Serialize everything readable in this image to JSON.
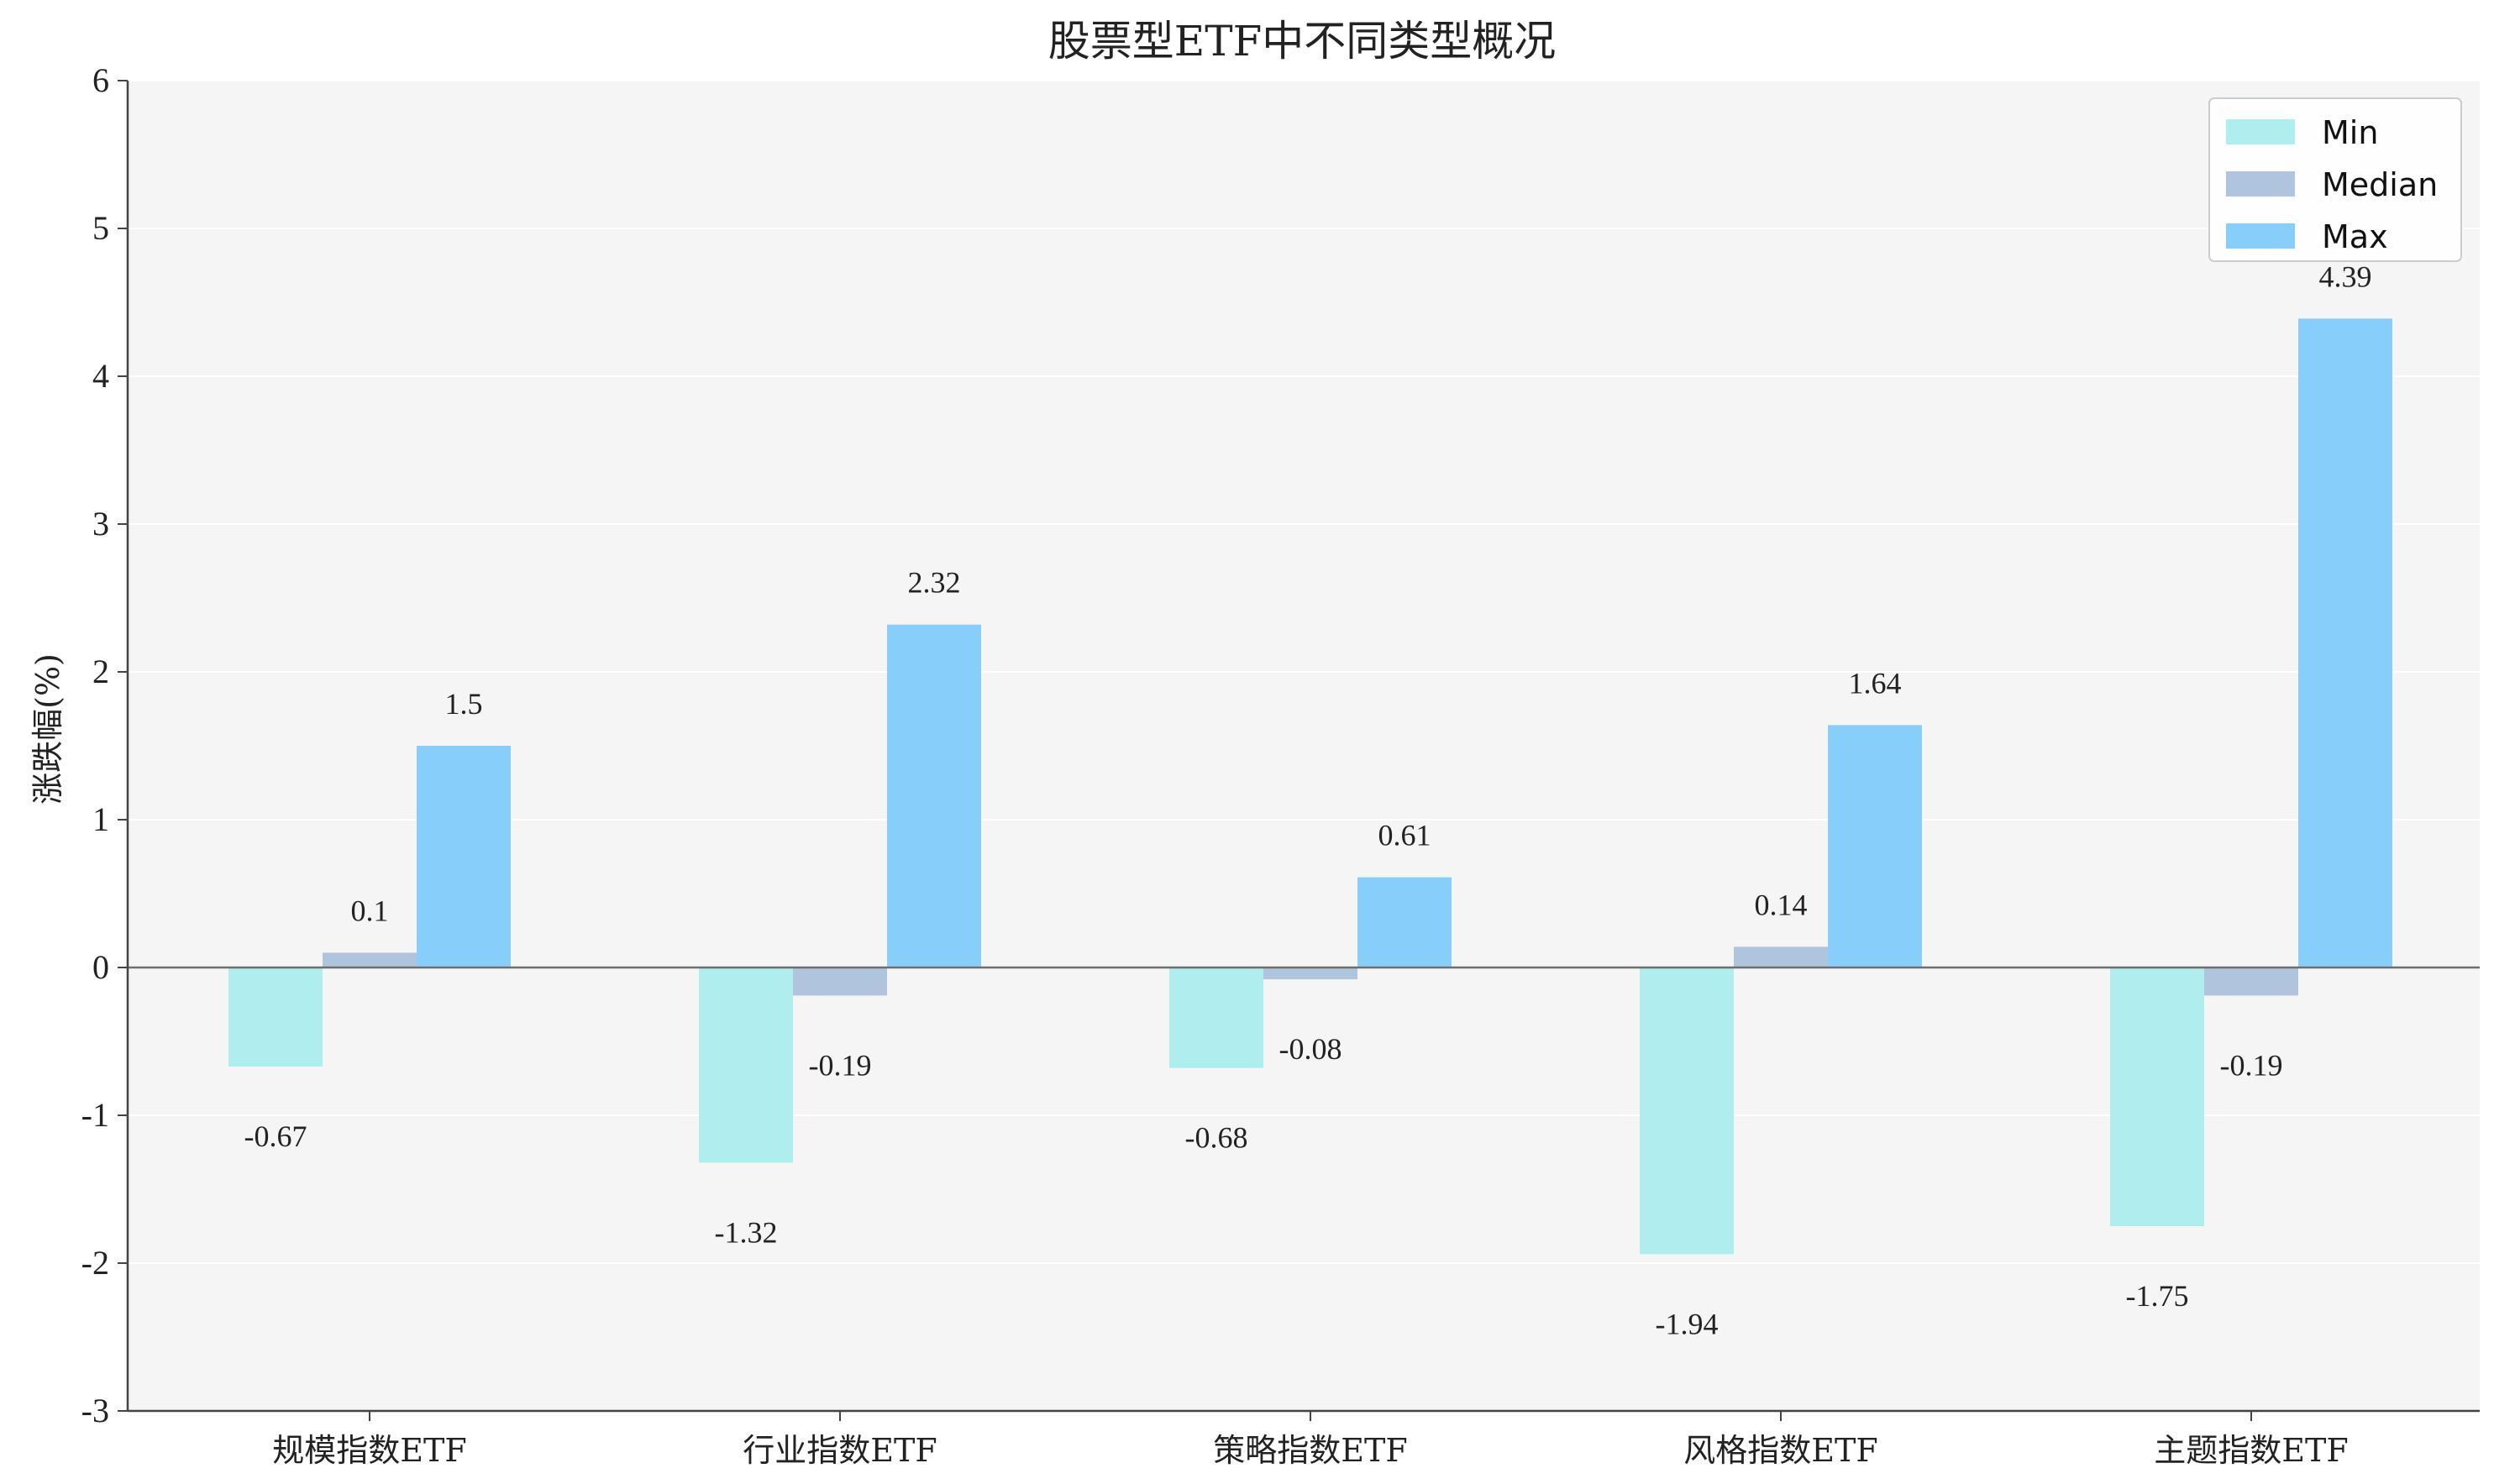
{
  "chart_data": {
    "type": "bar",
    "title": "股票型ETF中不同类型概况",
    "ylabel": "涨跌幅(%)",
    "xlabel": "",
    "ylim": [
      -3,
      6
    ],
    "yticks": [
      -3,
      -2,
      -1,
      0,
      1,
      2,
      3,
      4,
      5,
      6
    ],
    "categories": [
      "规模指数ETF",
      "行业指数ETF",
      "策略指数ETF",
      "风格指数ETF",
      "主题指数ETF"
    ],
    "series": [
      {
        "name": "Min",
        "color": "#AFEEEE",
        "values": [
          -0.67,
          -1.32,
          -0.68,
          -1.94,
          -1.75
        ]
      },
      {
        "name": "Median",
        "color": "#B0C4DE",
        "values": [
          0.1,
          -0.19,
          -0.08,
          0.14,
          -0.19
        ]
      },
      {
        "name": "Max",
        "color": "#87CEFA",
        "values": [
          1.5,
          2.32,
          0.61,
          1.64,
          4.39
        ]
      }
    ],
    "grid": true,
    "legend_position": "top-right",
    "background_color": "#F5F5F5"
  }
}
